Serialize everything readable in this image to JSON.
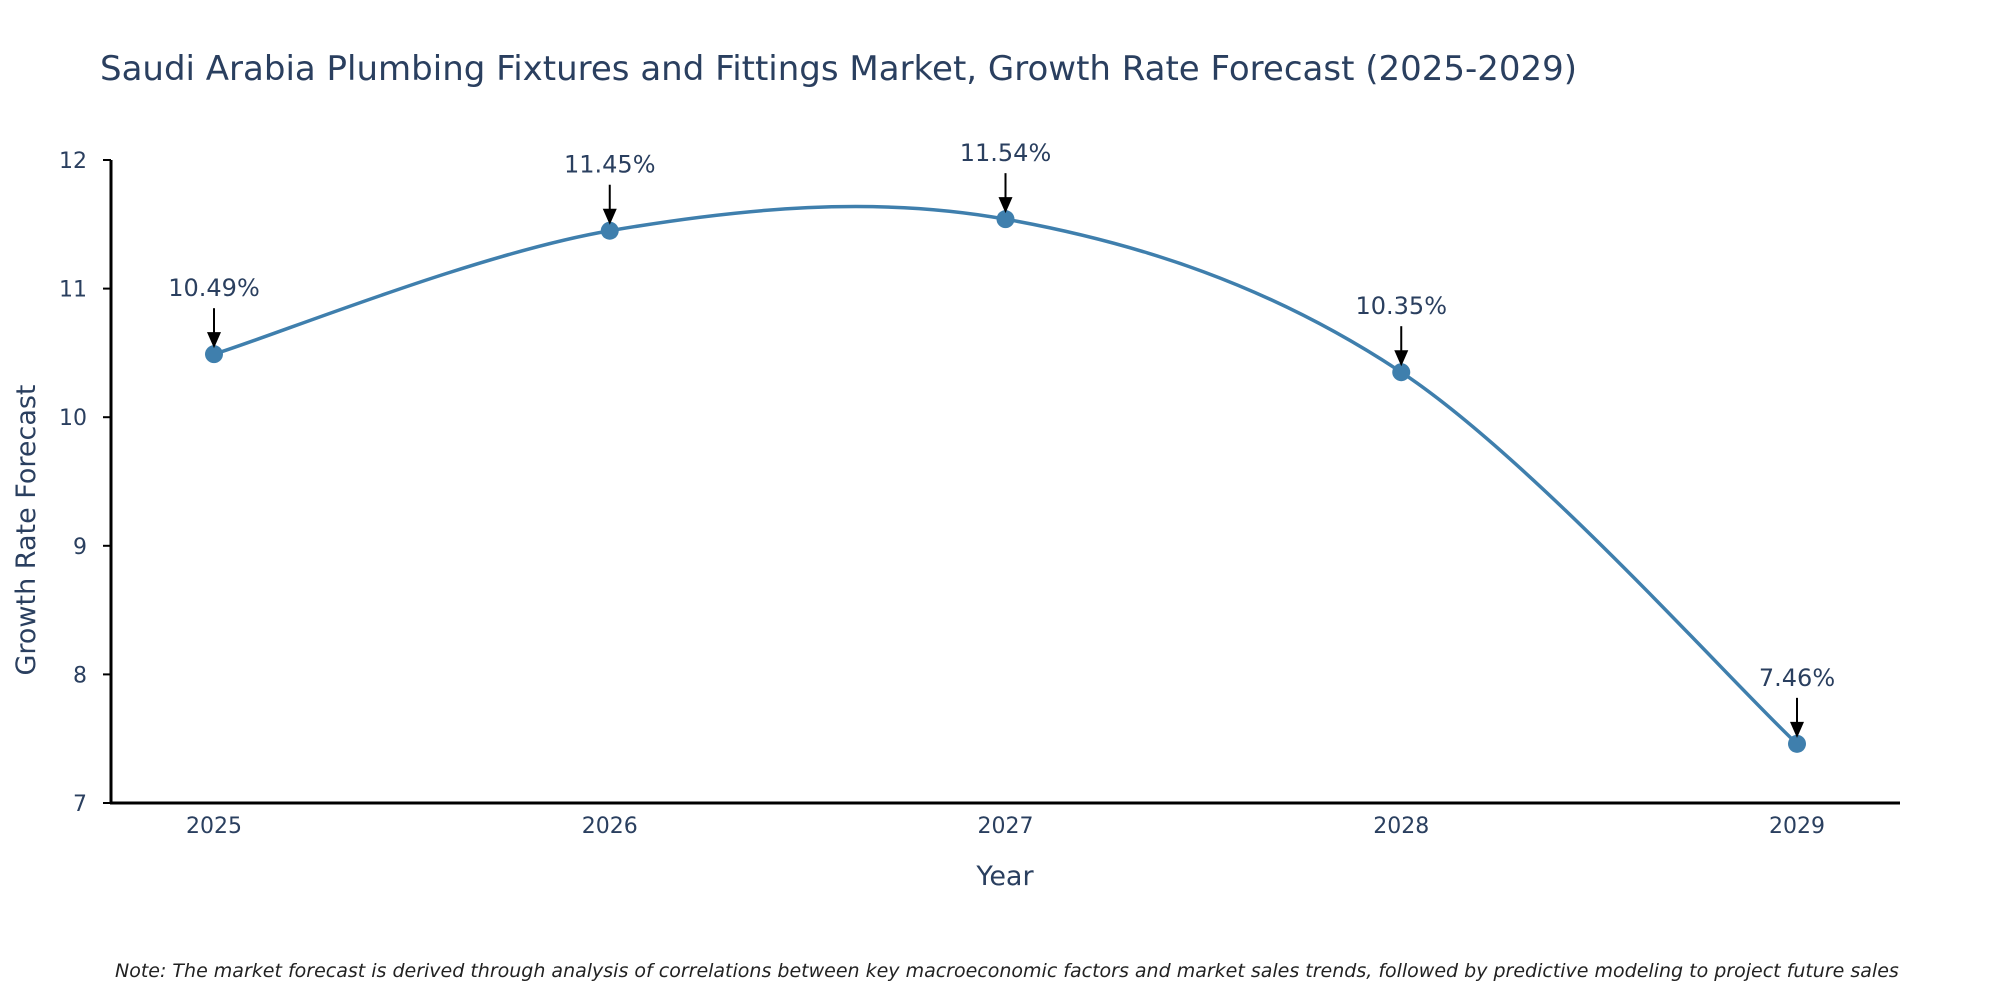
{
  "colors": {
    "line": "#3f7fad",
    "marker": "#3f7fad",
    "axis": "#000000",
    "arrow": "#000000",
    "text": "#2a3f5f"
  },
  "chart_data": {
    "type": "line",
    "title": "Saudi Arabia Plumbing Fixtures and Fittings Market, Growth Rate Forecast (2025-2029)",
    "xlabel": "Year",
    "ylabel": "Growth Rate Forecast",
    "categories": [
      "2025",
      "2026",
      "2027",
      "2028",
      "2029"
    ],
    "series": [
      {
        "name": "Growth Rate Forecast",
        "values": [
          10.49,
          11.45,
          11.54,
          10.35,
          7.46
        ],
        "labels": [
          "10.49%",
          "11.45%",
          "11.54%",
          "10.35%",
          "7.46%"
        ]
      }
    ],
    "yticks": [
      "7",
      "8",
      "9",
      "10",
      "11",
      "12"
    ],
    "ylim": [
      7,
      12
    ],
    "grid": false,
    "line_shape": "spline",
    "note": "Note: The market forecast is derived through analysis of correlations between key macroeconomic factors and market sales trends, followed by predictive modeling to project future sales"
  }
}
